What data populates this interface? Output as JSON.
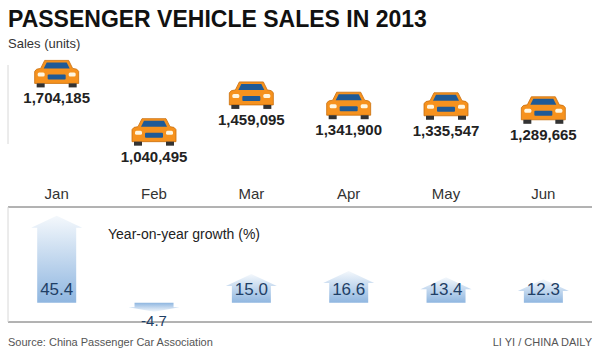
{
  "title": "PASSENGER VEHICLE SALES IN 2013",
  "source": "Source: China Passenger Car Association",
  "credit": "LI YI / CHINA DAILY",
  "chart_data": [
    {
      "type": "scatter",
      "subtitle": "Sales (units)",
      "categories": [
        "Jan",
        "Feb",
        "Mar",
        "Apr",
        "May",
        "Jun"
      ],
      "values": [
        1704185,
        1040495,
        1459095,
        1341900,
        1335547,
        1289665
      ],
      "value_labels": [
        "1,704,185",
        "1,040,495",
        "1,459,095",
        "1,341,900",
        "1,335,547",
        "1,289,665"
      ],
      "data_labels": true,
      "marker": "car",
      "color": "#f6921e",
      "ylim": [
        900000,
        1800000
      ],
      "yticks": [
        900000,
        1800000
      ],
      "tick_labels": false,
      "grid": false
    },
    {
      "type": "bar",
      "subtitle": "Year-on-year growth (%)",
      "categories": [
        "Jan",
        "Feb",
        "Mar",
        "Apr",
        "May",
        "Jun"
      ],
      "values": [
        45.4,
        -4.7,
        15.0,
        16.6,
        13.4,
        12.3
      ],
      "value_labels": [
        "45.4",
        "-4.7",
        "15.0",
        "16.6",
        "13.4",
        "12.3"
      ],
      "data_labels": true,
      "color": "#8fb6e0",
      "ylim": [
        -10,
        50
      ],
      "yticks": [
        0
      ],
      "tick_labels": "x",
      "grid": true
    }
  ]
}
